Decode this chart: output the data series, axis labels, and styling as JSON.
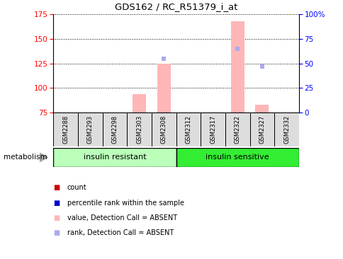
{
  "title": "GDS162 / RC_R51379_i_at",
  "samples": [
    "GSM2288",
    "GSM2293",
    "GSM2298",
    "GSM2303",
    "GSM2308",
    "GSM2312",
    "GSM2317",
    "GSM2322",
    "GSM2327",
    "GSM2332"
  ],
  "n_samples": 10,
  "ylim_left": [
    75,
    175
  ],
  "ylim_right": [
    0,
    100
  ],
  "yticks_left": [
    75,
    100,
    125,
    150,
    175
  ],
  "yticks_right": [
    0,
    25,
    50,
    75,
    100
  ],
  "yticklabels_right": [
    "0",
    "25",
    "50",
    "75",
    "100%"
  ],
  "pink_bar_values": [
    null,
    null,
    null,
    94,
    125,
    null,
    null,
    168,
    83,
    null
  ],
  "blue_dot_values": [
    null,
    null,
    null,
    null,
    130,
    null,
    null,
    140,
    122,
    null
  ],
  "group1_label": "insulin resistant",
  "group2_label": "insulin sensitive",
  "group1_indices": [
    0,
    1,
    2,
    3,
    4
  ],
  "group2_indices": [
    5,
    6,
    7,
    8,
    9
  ],
  "group1_color": "#bbffbb",
  "group2_color": "#33ee33",
  "sample_box_color": "#dddddd",
  "bar_bottom": 75,
  "pink_color": "#ffb6b6",
  "blue_dot_color": "#aaaaee",
  "legend_count_color": "#cc0000",
  "legend_rank_color": "#0000cc",
  "metabolism_label": "metabolism",
  "grid_color": "#000000"
}
